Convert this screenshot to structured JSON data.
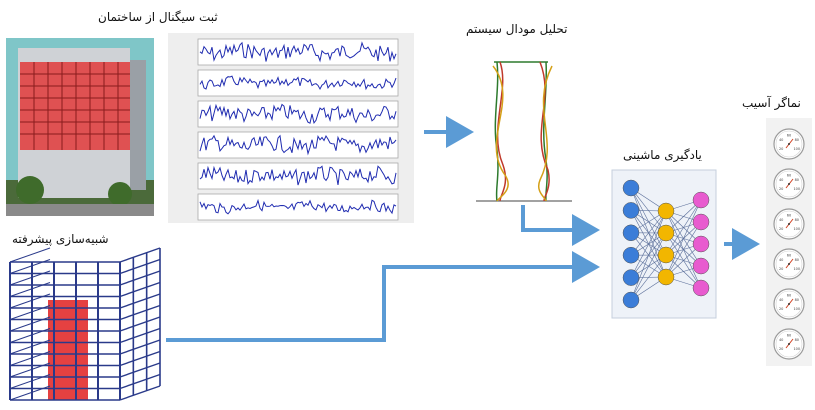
{
  "labels": {
    "signal_recording": "ثبت سیگنال از ساختمان",
    "modal_analysis": "تحلیل مودال سیستم",
    "advanced_simulation": "شبیه‌سازی پیشرفته",
    "machine_learning": "یادگیری ماشینی",
    "damage_indicator": "نماگر آسیب"
  },
  "gauge": {
    "ticks": [
      "20",
      "40",
      "60",
      "80",
      "100"
    ],
    "count": 6
  },
  "neural_net": {
    "layers": [
      6,
      4,
      5
    ],
    "colors": [
      "#3b7dd8",
      "#f2b600",
      "#e85bcf"
    ]
  },
  "colors": {
    "arrow": "#5b9bd5",
    "signal": "#1f2bb0",
    "building_red": "#e02020",
    "frame_blue": "#2a3a8a"
  }
}
